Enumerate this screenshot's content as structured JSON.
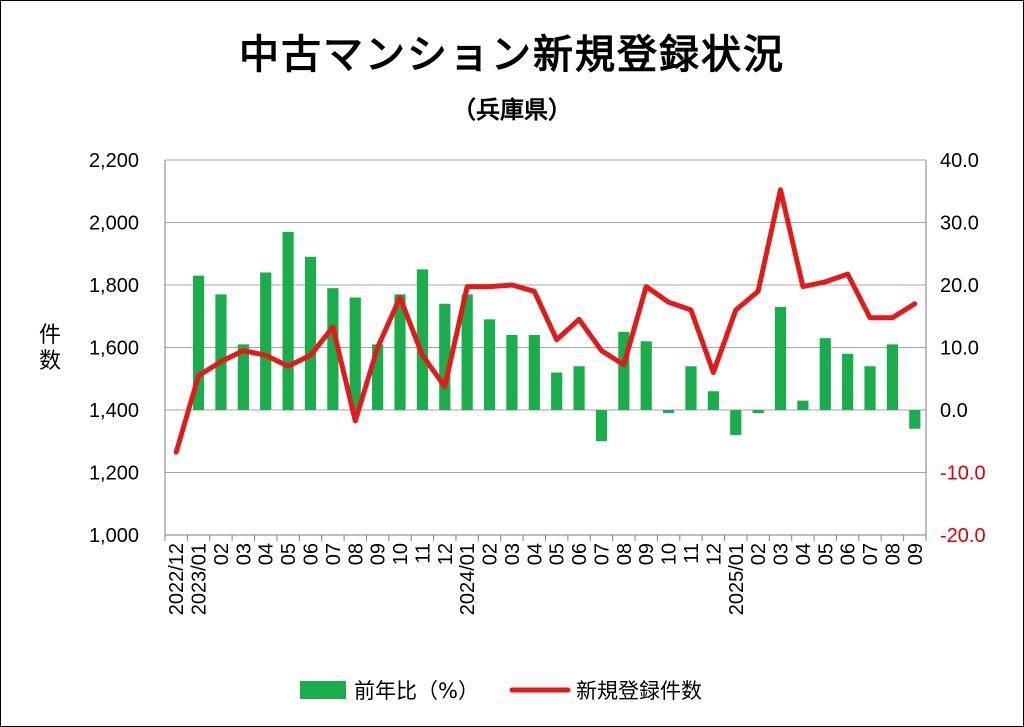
{
  "chart_data": {
    "type": "bar+line",
    "title": "中古マンション新規登録状況",
    "subtitle": "（兵庫県）",
    "ylabel_left": "件数",
    "categories": [
      "2022/12",
      "2023/01",
      "02",
      "03",
      "04",
      "05",
      "06",
      "07",
      "08",
      "09",
      "10",
      "11",
      "12",
      "2024/01",
      "02",
      "03",
      "04",
      "05",
      "06",
      "07",
      "08",
      "09",
      "10",
      "11",
      "12",
      "2025/01",
      "02",
      "03",
      "04",
      "05",
      "06",
      "07",
      "08",
      "09"
    ],
    "left_axis": {
      "min": 1000,
      "max": 2200,
      "step": 200,
      "tick_labels": [
        "1,000",
        "1,200",
        "1,400",
        "1,600",
        "1,800",
        "2,000",
        "2,200"
      ]
    },
    "right_axis": {
      "min": -20,
      "max": 40,
      "step": 10,
      "tick_labels": [
        "-20.0",
        "-10.0",
        "0.0",
        "10.0",
        "20.0",
        "30.0",
        "40.0"
      ],
      "negative_color": "#e00000"
    },
    "series": [
      {
        "name": "前年比（%）",
        "type": "bar",
        "axis": "right",
        "color": "#1aad4b",
        "values": [
          null,
          21.5,
          18.5,
          10.5,
          22.0,
          28.5,
          24.5,
          19.5,
          18.0,
          10.5,
          18.5,
          22.5,
          17.0,
          18.5,
          14.5,
          12.0,
          12.0,
          6.0,
          7.0,
          -5.0,
          12.5,
          11.0,
          -0.5,
          7.0,
          3.0,
          -4.0,
          -0.5,
          16.5,
          1.5,
          11.5,
          9.0,
          7.0,
          10.5,
          -3.0
        ]
      },
      {
        "name": "新規登録件数",
        "type": "line",
        "axis": "left",
        "color": "#e41a1a",
        "values": [
          1265,
          1510,
          1555,
          1590,
          1575,
          1540,
          1575,
          1665,
          1365,
          1600,
          1760,
          1575,
          1475,
          1795,
          1795,
          1800,
          1780,
          1625,
          1690,
          1590,
          1545,
          1795,
          1745,
          1720,
          1520,
          1720,
          1780,
          2105,
          1795,
          1810,
          1835,
          1695,
          1695,
          1740
        ]
      }
    ],
    "grid": "horizontal",
    "legend_position": "bottom"
  }
}
